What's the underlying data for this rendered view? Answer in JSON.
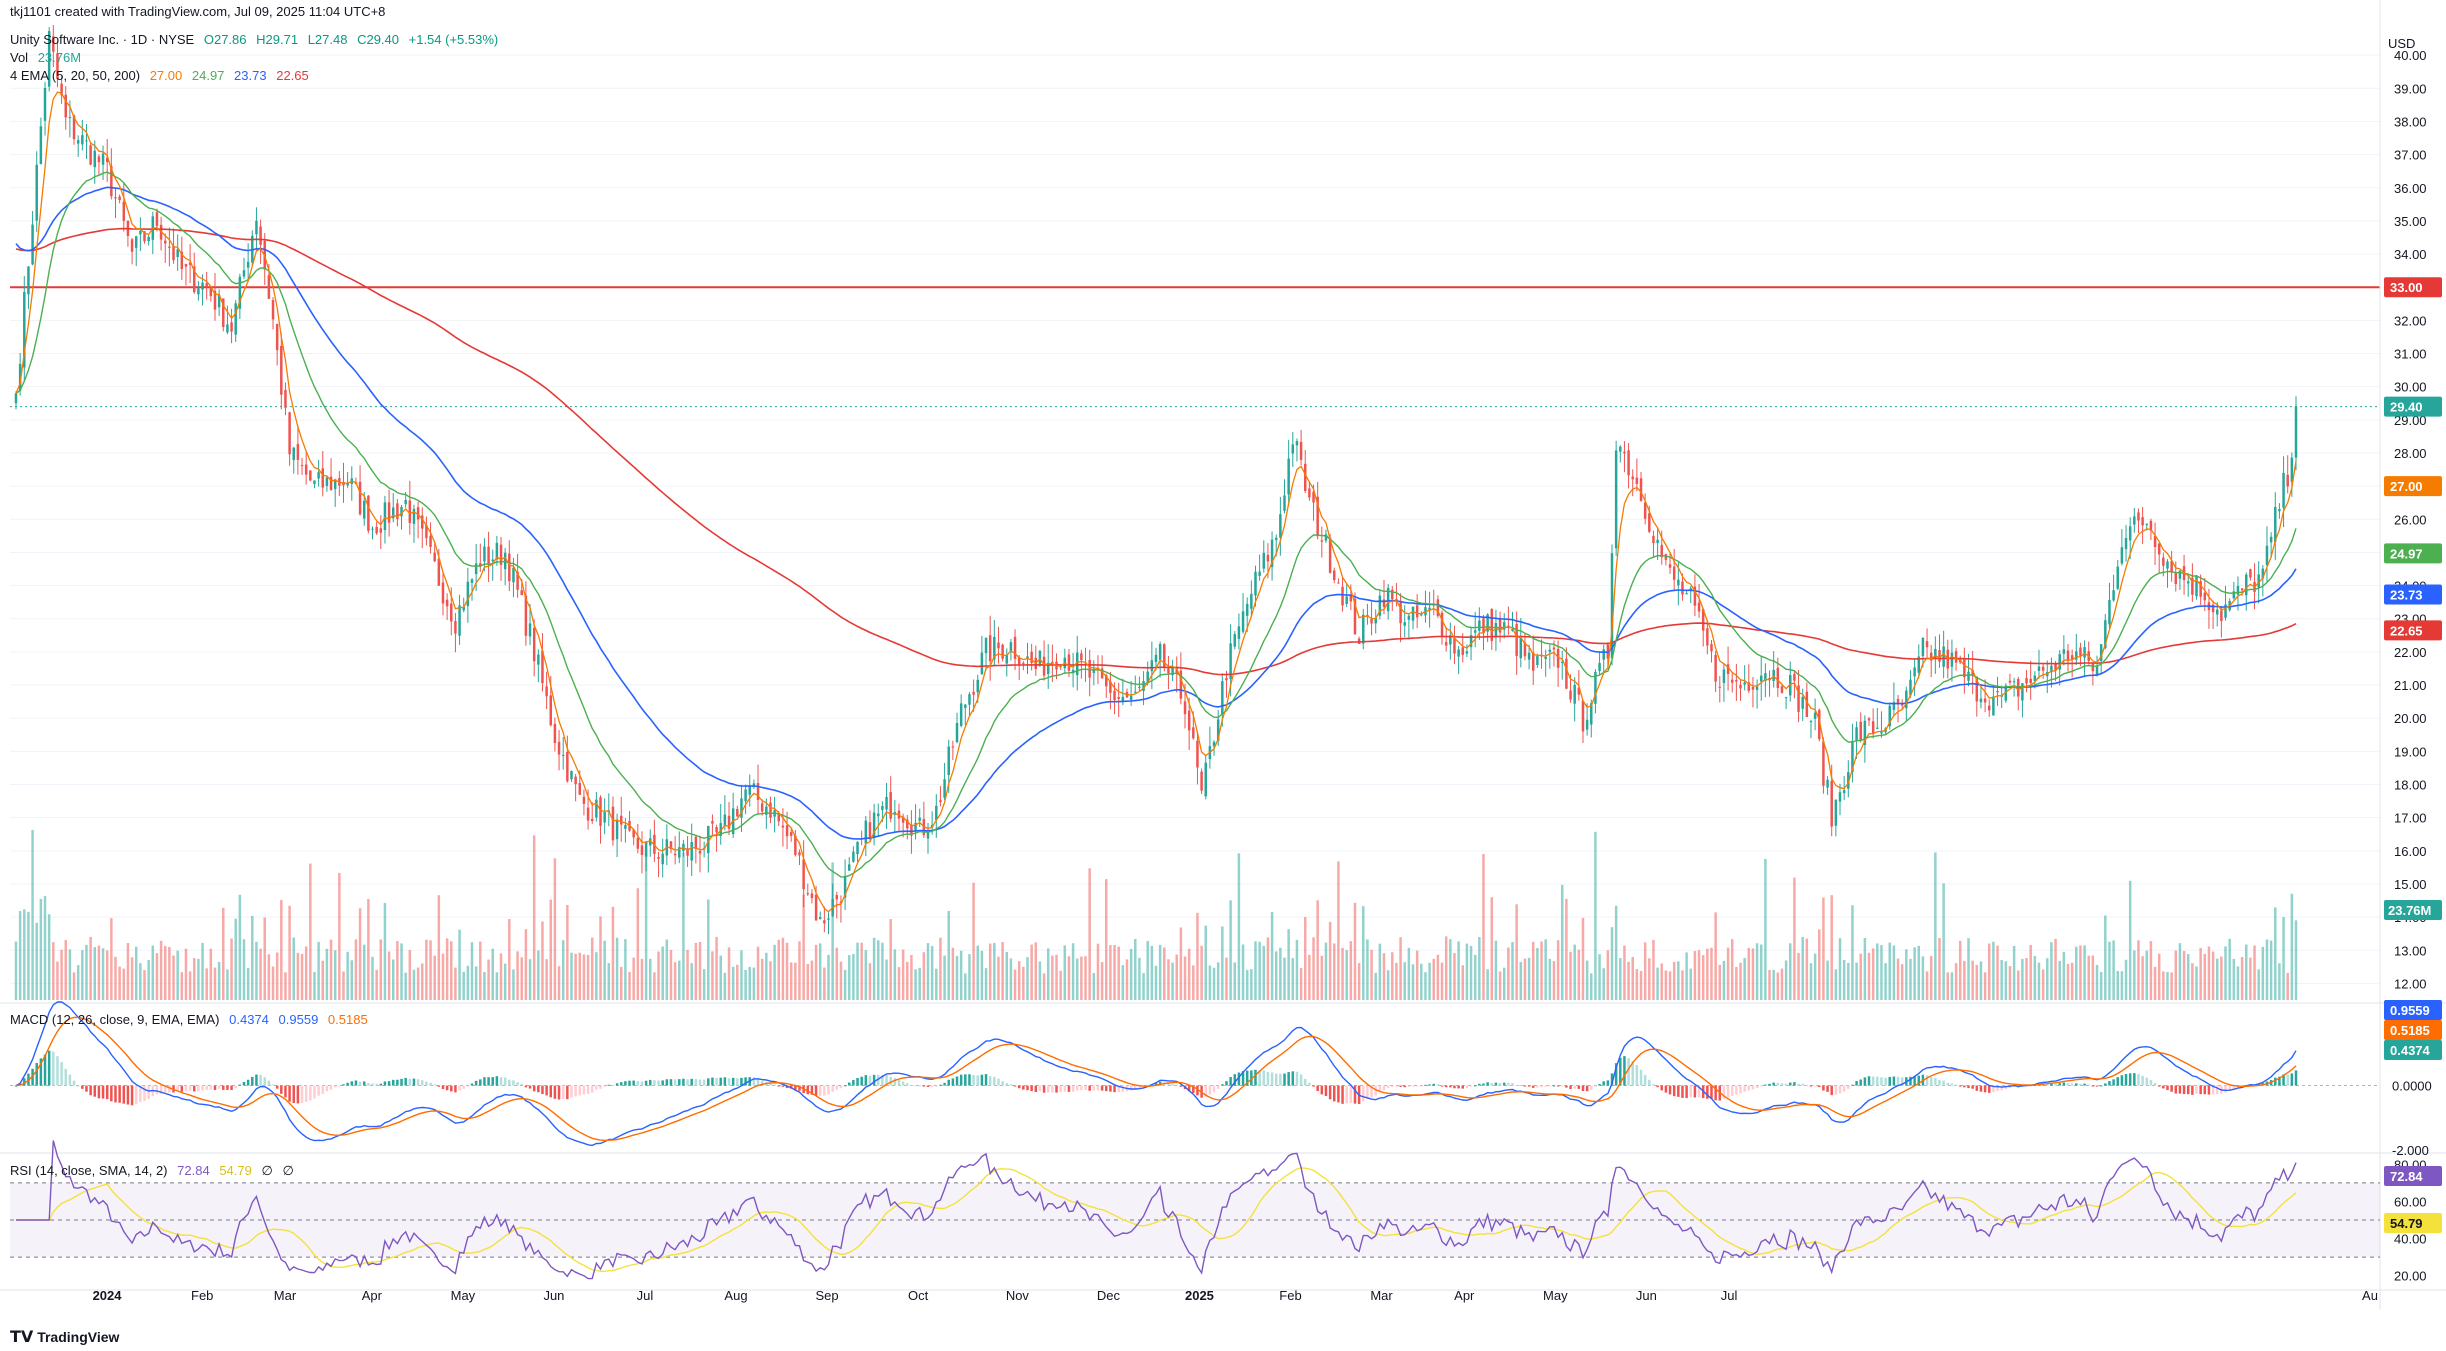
{
  "header": {
    "attribution": "tkj1101 created with TradingView.com, Jul 09, 2025 11:04 UTC+8",
    "symbol": "Unity Software Inc. · 1D · NYSE",
    "ohlc": {
      "o": "O27.86",
      "h": "H29.71",
      "l": "L27.48",
      "c": "C29.40",
      "chg": "+1.54 (+5.53%)"
    },
    "vol_label": "Vol",
    "vol_value": "23.76M",
    "ema_label": "4 EMA (5, 20, 50, 200)",
    "ema_values": [
      "27.00",
      "24.97",
      "23.73",
      "22.65"
    ]
  },
  "footer": {
    "logo_text": "TradingView"
  },
  "colors": {
    "up": "#26a69a",
    "down": "#ef5350",
    "ema5": "#f57c00",
    "ema20": "#4caf50",
    "ema50": "#2962ff",
    "ema200": "#e53935",
    "hline": "#e53935",
    "macd": "#2962ff",
    "signal": "#ff6d00",
    "rsi": "#7e57c2",
    "rsi_ma": "#f5e13c"
  },
  "chart_data": [
    {
      "type": "candlestick",
      "title": "Unity Software Inc. · 1D · NYSE",
      "currency": "USD",
      "ylim": [
        11.5,
        41.0
      ],
      "yticks": [
        "12.00",
        "13.00",
        "14.00",
        "15.00",
        "16.00",
        "17.00",
        "18.00",
        "19.00",
        "20.00",
        "21.00",
        "22.00",
        "23.00",
        "24.00",
        "25.00",
        "26.00",
        "27.00",
        "28.00",
        "29.00",
        "30.00",
        "31.00",
        "32.00",
        "33.00",
        "34.00",
        "35.00",
        "36.00",
        "37.00",
        "38.00",
        "39.00",
        "40.00"
      ],
      "x_labels": [
        "2024",
        "Feb",
        "Mar",
        "Apr",
        "May",
        "Jun",
        "Jul",
        "Aug",
        "Sep",
        "Oct",
        "Nov",
        "Dec",
        "2025",
        "Feb",
        "Mar",
        "Apr",
        "May",
        "Jun",
        "Jul",
        "Au"
      ],
      "anchors": [
        [
          0,
          29.8
        ],
        [
          8,
          40.5
        ],
        [
          12,
          38.0
        ],
        [
          22,
          36.5
        ],
        [
          28,
          34.0
        ],
        [
          34,
          35.0
        ],
        [
          40,
          33.5
        ],
        [
          46,
          33.0
        ],
        [
          52,
          31.8
        ],
        [
          58,
          35.2
        ],
        [
          62,
          32.0
        ],
        [
          66,
          28.0
        ],
        [
          72,
          27.0
        ],
        [
          80,
          27.2
        ],
        [
          86,
          25.8
        ],
        [
          94,
          26.5
        ],
        [
          100,
          24.8
        ],
        [
          106,
          23.0
        ],
        [
          112,
          24.8
        ],
        [
          118,
          25.0
        ],
        [
          124,
          22.5
        ],
        [
          130,
          19.5
        ],
        [
          136,
          17.5
        ],
        [
          142,
          17.0
        ],
        [
          148,
          16.2
        ],
        [
          154,
          16.0
        ],
        [
          162,
          16.0
        ],
        [
          170,
          16.5
        ],
        [
          176,
          17.8
        ],
        [
          182,
          17.3
        ],
        [
          188,
          16.0
        ],
        [
          194,
          13.8
        ],
        [
          200,
          15.0
        ],
        [
          206,
          16.8
        ],
        [
          212,
          17.5
        ],
        [
          218,
          16.6
        ],
        [
          222,
          17.2
        ],
        [
          228,
          20.2
        ],
        [
          234,
          22.0
        ],
        [
          240,
          22.2
        ],
        [
          246,
          21.5
        ],
        [
          252,
          22.0
        ],
        [
          258,
          21.4
        ],
        [
          264,
          20.7
        ],
        [
          270,
          20.6
        ],
        [
          276,
          21.8
        ],
        [
          282,
          20.5
        ],
        [
          286,
          17.6
        ],
        [
          292,
          21.5
        ],
        [
          298,
          23.8
        ],
        [
          304,
          25.5
        ],
        [
          308,
          28.5
        ],
        [
          312,
          26.5
        ],
        [
          318,
          24.5
        ],
        [
          324,
          22.5
        ],
        [
          330,
          23.8
        ],
        [
          336,
          22.9
        ],
        [
          342,
          23.2
        ],
        [
          348,
          22.0
        ],
        [
          354,
          22.8
        ],
        [
          360,
          22.6
        ],
        [
          366,
          21.5
        ],
        [
          372,
          21.8
        ],
        [
          378,
          20.0
        ],
        [
          384,
          22.0
        ],
        [
          386,
          28.5
        ],
        [
          392,
          26.8
        ],
        [
          398,
          24.5
        ],
        [
          404,
          23.5
        ],
        [
          410,
          21.4
        ],
        [
          416,
          21.0
        ],
        [
          422,
          21.5
        ],
        [
          428,
          21.0
        ],
        [
          434,
          19.8
        ],
        [
          438,
          17.0
        ],
        [
          444,
          19.5
        ],
        [
          450,
          19.8
        ],
        [
          456,
          20.5
        ],
        [
          460,
          22.0
        ],
        [
          466,
          21.8
        ],
        [
          472,
          21.0
        ],
        [
          478,
          20.5
        ],
        [
          484,
          21.0
        ],
        [
          490,
          21.5
        ],
        [
          496,
          22.0
        ],
        [
          502,
          21.5
        ],
        [
          508,
          25.5
        ],
        [
          514,
          26.0
        ],
        [
          520,
          24.5
        ],
        [
          526,
          24.0
        ],
        [
          532,
          23.2
        ],
        [
          538,
          24.0
        ],
        [
          542,
          24.3
        ],
        [
          546,
          26.5
        ],
        [
          549,
          27.86
        ],
        [
          550,
          29.4
        ]
      ],
      "ema_periods": [
        5,
        20,
        50,
        200
      ],
      "ema_final": [
        27.0,
        24.97,
        23.73,
        22.65
      ],
      "horizontal_line": 33.0,
      "last_price": 29.4,
      "price_labels": [
        "33.00",
        "29.40",
        "27.00",
        "24.97",
        "23.73",
        "22.65",
        "23.76M"
      ],
      "volume_last": "23.76M"
    },
    {
      "type": "line",
      "title": "MACD (12, 26, close, 9, EMA, EMA)",
      "values_last": [
        "0.4374",
        "0.9559",
        "0.5185"
      ],
      "series": [
        {
          "name": "MACD"
        },
        {
          "name": "Signal"
        },
        {
          "name": "Histogram"
        }
      ],
      "ylim": [
        -2.0,
        2.5
      ],
      "yticks": [
        "2.000",
        "0.0000",
        "-2.000"
      ]
    },
    {
      "type": "line",
      "title": "RSI (14, close, SMA, 14, 2)",
      "values_last": [
        "72.84",
        "54.79",
        "∅",
        "∅"
      ],
      "series": [
        {
          "name": "RSI"
        },
        {
          "name": "RSI-based MA"
        }
      ],
      "ylim": [
        15,
        85
      ],
      "yticks": [
        "80.00",
        "60.00",
        "40.00",
        "20.00"
      ],
      "bands": [
        30,
        50,
        70
      ]
    }
  ]
}
